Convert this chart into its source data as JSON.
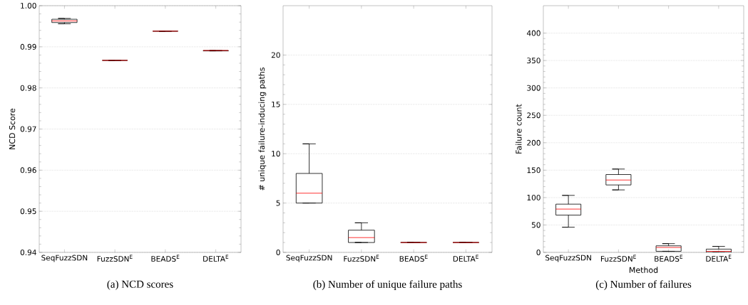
{
  "chart_data": [
    {
      "type": "box",
      "title": "(a) NCD scores",
      "ylabel": "NCD Score",
      "categories": [
        "SeqFuzzSDN",
        "FuzzSDN$^{E}$",
        "BEADS$^{E}$",
        "DELTA$^{E}$"
      ],
      "boxes": [
        {
          "low": 0.9956,
          "q1": 0.9959,
          "median": 0.9963,
          "q3": 0.9967,
          "high": 0.9969
        },
        {
          "low": 0.9867,
          "q1": 0.9867,
          "median": 0.9867,
          "q3": 0.9867,
          "high": 0.9867
        },
        {
          "low": 0.9938,
          "q1": 0.9938,
          "median": 0.9938,
          "q3": 0.9938,
          "high": 0.9938
        },
        {
          "low": 0.989,
          "q1": 0.989,
          "median": 0.9891,
          "q3": 0.9891,
          "high": 0.9891
        }
      ],
      "ylim": [
        0.94,
        1.0
      ],
      "yticks": [
        0.94,
        0.95,
        0.96,
        0.97,
        0.98,
        0.99,
        {
          "value": 1.0,
          "label": "1.00"
        }
      ],
      "grid": "y"
    },
    {
      "type": "box",
      "title": "(b) Number of unique failure paths",
      "ylabel": "# unique failure-inducing paths",
      "categories": [
        "SeqFuzzSDN",
        "FuzzSDN$^{E}$",
        "BEADS$^{E}$",
        "DELTA$^{E}$"
      ],
      "boxes": [
        {
          "low": 5,
          "q1": 5,
          "median": 6,
          "q3": 8,
          "high": 11
        },
        {
          "low": 1,
          "q1": 1,
          "median": 1.5,
          "q3": 2.25,
          "high": 3
        },
        {
          "low": 1,
          "q1": 1,
          "median": 1,
          "q3": 1,
          "high": 1
        },
        {
          "low": 1,
          "q1": 1,
          "median": 1,
          "q3": 1,
          "high": 1
        }
      ],
      "ylim": [
        0,
        25
      ],
      "yticks": [
        0,
        5,
        10,
        15,
        20
      ],
      "grid": "y"
    },
    {
      "type": "box",
      "title": "(c) Number of failures",
      "xlabel": "Method",
      "ylabel": "Failure count",
      "categories": [
        "SeqFuzzSDN",
        "FuzzSDN$^{E}$",
        "BEADS$^{E}$",
        "DELTA$^{E}$"
      ],
      "boxes": [
        {
          "low": 46,
          "q1": 68,
          "median": 79,
          "q3": 88,
          "high": 104
        },
        {
          "low": 114,
          "q1": 123,
          "median": 132,
          "q3": 142,
          "high": 152
        },
        {
          "low": 2,
          "q1": 2,
          "median": 9,
          "q3": 12,
          "high": 16
        },
        {
          "low": 0,
          "q1": 0,
          "median": 2,
          "q3": 6,
          "high": 11
        }
      ],
      "ylim": [
        0,
        450
      ],
      "yticks": [
        0,
        50,
        100,
        150,
        200,
        250,
        300,
        350,
        400
      ],
      "grid": "y"
    }
  ]
}
